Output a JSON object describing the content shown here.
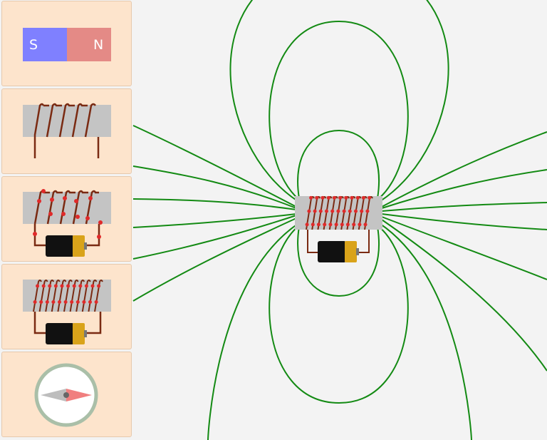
{
  "palette": {
    "bar_magnet": {
      "south_label": "S",
      "north_label": "N"
    },
    "items": [
      "bar-magnet",
      "coil",
      "electromagnet-few-turns",
      "electromagnet-many-turns",
      "compass"
    ]
  },
  "colors": {
    "field_line": "#138a13",
    "wire": "#7a2a12",
    "electron": "#e02a2a",
    "core": "#c4c4c4",
    "magnet_south": "#7f80ff",
    "magnet_north": "#e48a86",
    "battery_body": "#111111",
    "battery_cap": "#d9a31a",
    "tile_bg": "#fde4cc",
    "canvas_bg": "#f3f3f3",
    "compass_ring": "#aabfa8"
  },
  "workspace": {
    "object": "electromagnet",
    "shows_field_lines": true
  }
}
